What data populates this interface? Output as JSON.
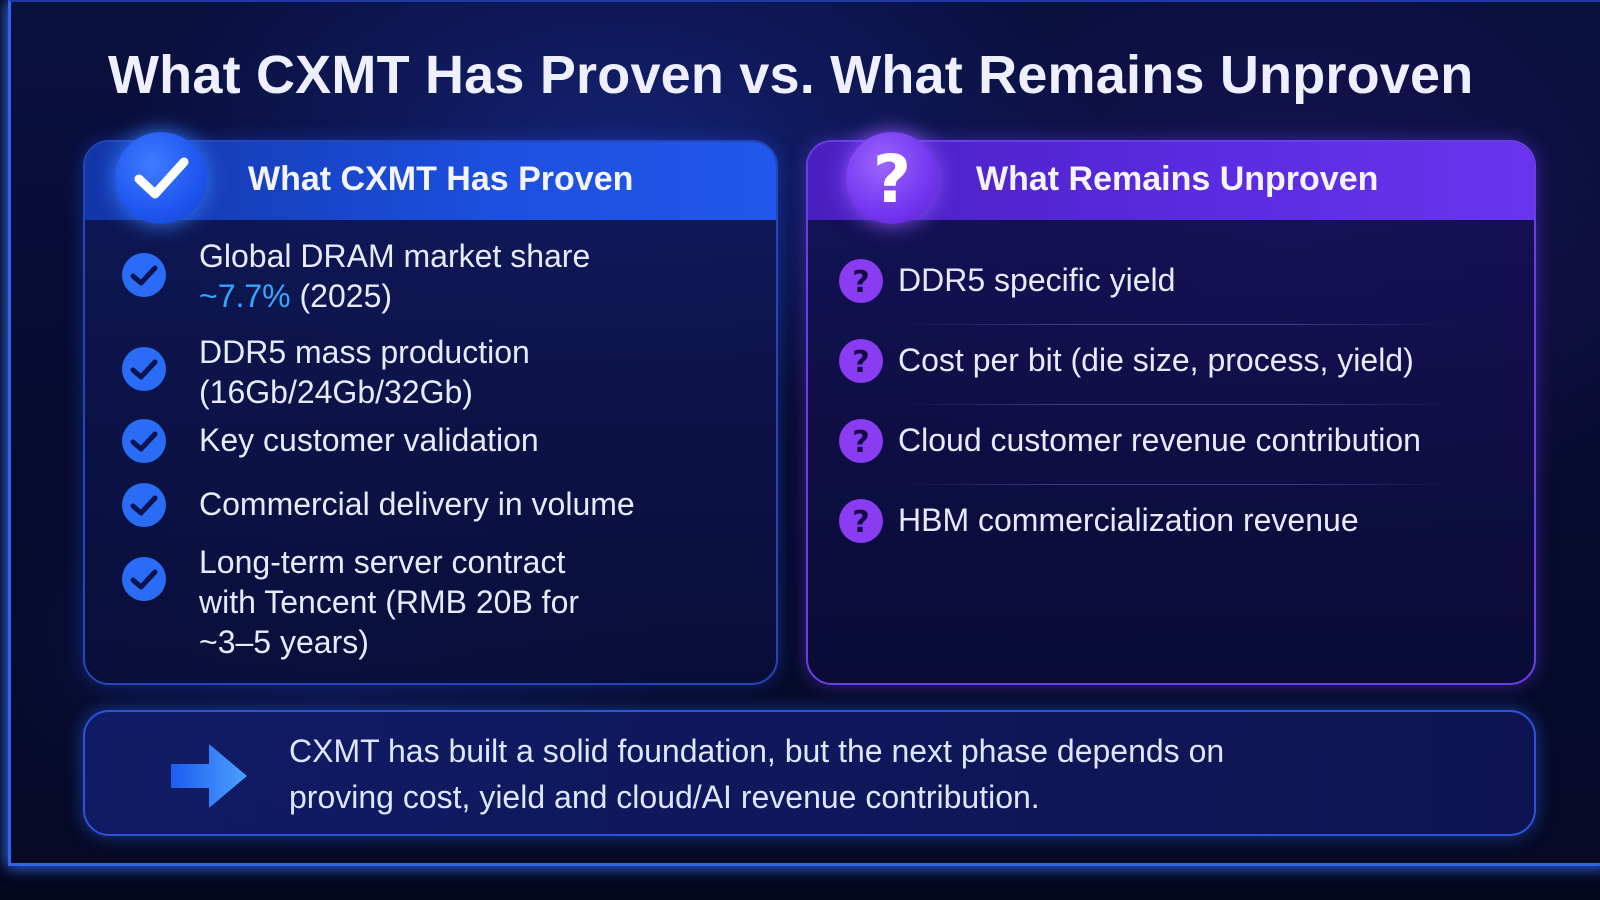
{
  "title": "What CXMT Has Proven vs. What Remains Unproven",
  "left_panel": {
    "title": "What CXMT Has Proven",
    "badge_icon": "checkmark-icon",
    "item_icon": "check-circle-icon",
    "accent_color": "#1e55f0",
    "items": [
      {
        "line1": "Global DRAM market share",
        "highlight": "~7.7%",
        "line2_rest": " (2025)"
      },
      {
        "line1": "DDR5 mass production",
        "line2": "(16Gb/24Gb/32Gb)"
      },
      {
        "line1": "Key customer validation"
      },
      {
        "line1": "Commercial delivery in volume"
      },
      {
        "line1": "Long-term server contract",
        "line2": "with Tencent (RMB 20B for",
        "line3": "~3–5 years)"
      }
    ]
  },
  "right_panel": {
    "title": "What Remains Unproven",
    "badge_icon": "question-mark-icon",
    "item_icon": "question-circle-icon",
    "accent_color": "#7436f0",
    "items": [
      {
        "text": "DDR5 specific yield"
      },
      {
        "text": "Cost per bit (die size, process, yield)"
      },
      {
        "text": "Cloud customer revenue contribution"
      },
      {
        "text": "HBM commercialization revenue"
      }
    ]
  },
  "summary": {
    "icon": "arrow-right-icon",
    "line1": "CXMT has built a solid foundation, but the next phase depends on",
    "line2": "proving cost, yield and cloud/AI revenue contribution."
  }
}
